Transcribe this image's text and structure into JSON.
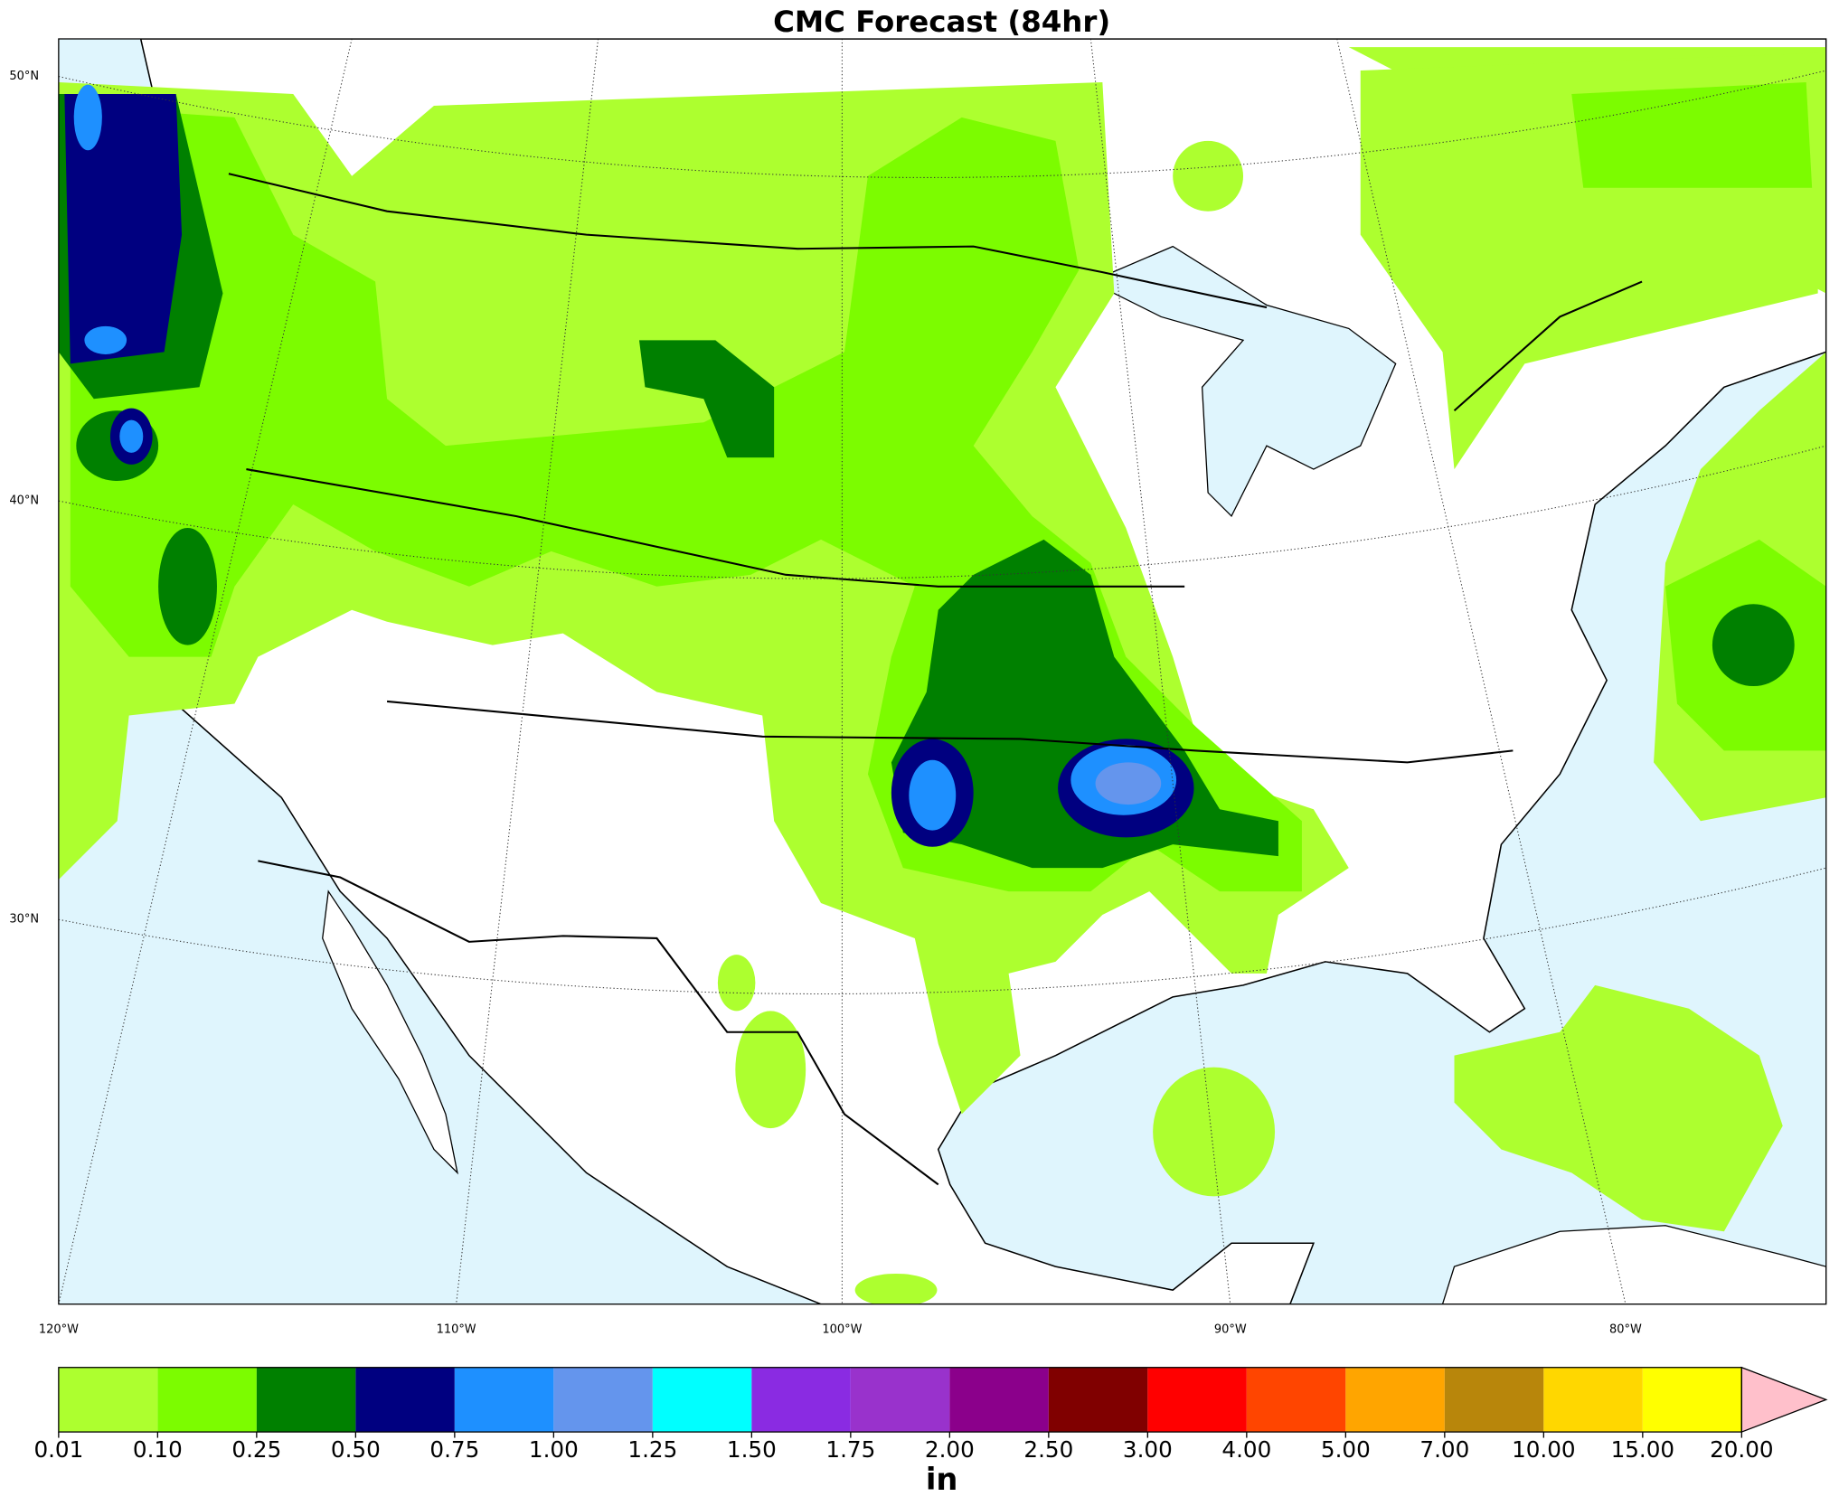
{
  "title": "CMC Forecast (84hr)",
  "map": {
    "lat_labels": [
      "50°N",
      "40°N",
      "30°N"
    ],
    "lon_labels": [
      "120°W",
      "110°W",
      "100°W",
      "90°W",
      "80°W"
    ]
  },
  "colorbar": {
    "label": "in",
    "colors": [
      "#adff2f",
      "#7cfc00",
      "#008000",
      "#000080",
      "#1e90ff",
      "#6495ed",
      "#00ffff",
      "#8a2be2",
      "#9932cc",
      "#8b008b",
      "#800000",
      "#ff0000",
      "#ff4500",
      "#ffa500",
      "#b8860b",
      "#ffd700",
      "#ffff00"
    ],
    "extend_color": "#ffc0cb",
    "ticks": [
      0.01,
      {
        "value": 0.1,
        "label": "0.10"
      },
      0.25,
      {
        "value": 0.5,
        "label": "0.50"
      },
      0.75,
      {
        "value": 1,
        "label": "1.00"
      },
      1.25,
      {
        "value": 1.5,
        "label": "1.50"
      },
      1.75,
      {
        "value": 2,
        "label": "2.00"
      },
      {
        "value": 2.5,
        "label": "2.50"
      },
      {
        "value": 3,
        "label": "3.00"
      },
      {
        "value": 4,
        "label": "4.00"
      },
      {
        "value": 5,
        "label": "5.00"
      },
      {
        "value": 7,
        "label": "7.00"
      },
      {
        "value": 10,
        "label": "10.00"
      },
      {
        "value": 15,
        "label": "15.00"
      },
      {
        "value": 20,
        "label": "20.00"
      }
    ]
  }
}
